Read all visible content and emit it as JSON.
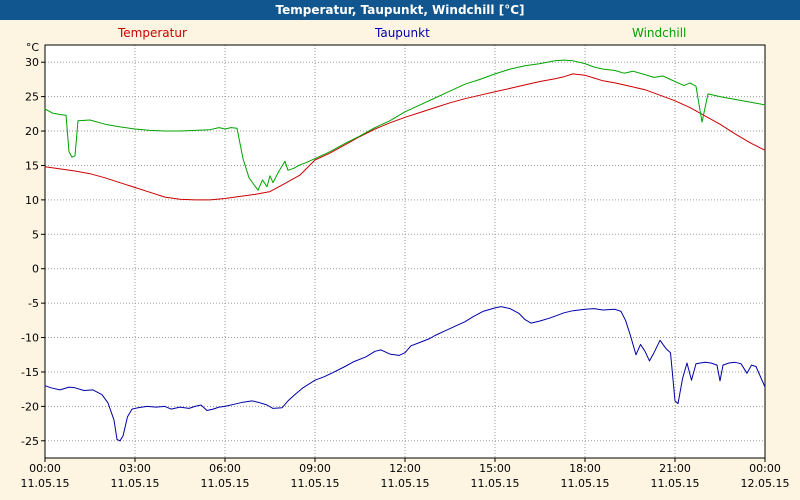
{
  "title_bar": {
    "title": "Temperatur, Taupunkt, Windchill [°C]"
  },
  "legend": [
    {
      "label": "Temperatur",
      "color": "#cc0000"
    },
    {
      "label": "Taupunkt",
      "color": "#0000aa"
    },
    {
      "label": "Windchill",
      "color": "#00a300"
    }
  ],
  "colors": {
    "background": "#fdf5e1",
    "titlebar_bg": "#11568e",
    "titlebar_text": "#ffffff",
    "plot_bg": "#ffffff",
    "frame": "#000000",
    "grid": "#9a9a9a"
  },
  "chart_data": {
    "type": "line",
    "title": "Temperatur, Taupunkt, Windchill [°C]",
    "ylabel": "°C",
    "xlabel": "",
    "ylim": [
      -27.5,
      32.5
    ],
    "xlim_hours": [
      0,
      24
    ],
    "grid": "dotted",
    "legend_position": "top",
    "yticks": [
      -25,
      -20,
      -15,
      -10,
      -5,
      0,
      5,
      10,
      15,
      20,
      25,
      30
    ],
    "xticks": [
      {
        "hour": 0,
        "time": "00:00",
        "date": "11.05.15"
      },
      {
        "hour": 3,
        "time": "03:00",
        "date": "11.05.15"
      },
      {
        "hour": 6,
        "time": "06:00",
        "date": "11.05.15"
      },
      {
        "hour": 9,
        "time": "09:00",
        "date": "11.05.15"
      },
      {
        "hour": 12,
        "time": "12:00",
        "date": "11.05.15"
      },
      {
        "hour": 15,
        "time": "15:00",
        "date": "11.05.15"
      },
      {
        "hour": 18,
        "time": "18:00",
        "date": "11.05.15"
      },
      {
        "hour": 21,
        "time": "21:00",
        "date": "11.05.15"
      },
      {
        "hour": 24,
        "time": "00:00",
        "date": "12.05.15"
      }
    ],
    "series": [
      {
        "name": "Temperatur",
        "color": "#cc0000",
        "points": [
          [
            0,
            14.8
          ],
          [
            0.5,
            14.5
          ],
          [
            1,
            14.2
          ],
          [
            1.5,
            13.8
          ],
          [
            2,
            13.2
          ],
          [
            2.5,
            12.5
          ],
          [
            3,
            11.8
          ],
          [
            3.5,
            11.1
          ],
          [
            4,
            10.4
          ],
          [
            4.5,
            10.1
          ],
          [
            5,
            10.0
          ],
          [
            5.5,
            10.0
          ],
          [
            6,
            10.2
          ],
          [
            6.5,
            10.5
          ],
          [
            7,
            10.8
          ],
          [
            7.5,
            11.2
          ],
          [
            8,
            12.4
          ],
          [
            8.5,
            13.6
          ],
          [
            9,
            15.8
          ],
          [
            9.5,
            16.8
          ],
          [
            10,
            18.0
          ],
          [
            10.5,
            19.2
          ],
          [
            11,
            20.3
          ],
          [
            11.5,
            21.2
          ],
          [
            12,
            22.0
          ],
          [
            12.5,
            22.7
          ],
          [
            13,
            23.4
          ],
          [
            13.5,
            24.1
          ],
          [
            14,
            24.7
          ],
          [
            14.5,
            25.2
          ],
          [
            15,
            25.7
          ],
          [
            15.5,
            26.2
          ],
          [
            16,
            26.7
          ],
          [
            16.5,
            27.2
          ],
          [
            17,
            27.6
          ],
          [
            17.3,
            27.9
          ],
          [
            17.6,
            28.3
          ],
          [
            18,
            28.1
          ],
          [
            18.3,
            27.7
          ],
          [
            18.6,
            27.3
          ],
          [
            19,
            27.0
          ],
          [
            19.5,
            26.5
          ],
          [
            20,
            26.0
          ],
          [
            20.5,
            25.2
          ],
          [
            21,
            24.4
          ],
          [
            21.5,
            23.4
          ],
          [
            22,
            22.2
          ],
          [
            22.5,
            21.0
          ],
          [
            23,
            19.6
          ],
          [
            23.5,
            18.3
          ],
          [
            24,
            17.2
          ]
        ]
      },
      {
        "name": "Taupunkt",
        "color": "#0000aa",
        "points": [
          [
            0,
            -17.0
          ],
          [
            0.2,
            -17.3
          ],
          [
            0.5,
            -17.6
          ],
          [
            0.8,
            -17.2
          ],
          [
            1,
            -17.3
          ],
          [
            1.3,
            -17.7
          ],
          [
            1.6,
            -17.6
          ],
          [
            1.9,
            -18.3
          ],
          [
            2.1,
            -19.5
          ],
          [
            2.3,
            -22.0
          ],
          [
            2.4,
            -24.8
          ],
          [
            2.5,
            -25.0
          ],
          [
            2.6,
            -24.3
          ],
          [
            2.75,
            -21.5
          ],
          [
            2.9,
            -20.4
          ],
          [
            3.1,
            -20.2
          ],
          [
            3.4,
            -20.0
          ],
          [
            3.7,
            -20.1
          ],
          [
            4,
            -20.0
          ],
          [
            4.2,
            -20.4
          ],
          [
            4.5,
            -20.1
          ],
          [
            4.8,
            -20.3
          ],
          [
            5,
            -20.0
          ],
          [
            5.2,
            -19.8
          ],
          [
            5.4,
            -20.6
          ],
          [
            5.6,
            -20.4
          ],
          [
            5.8,
            -20.1
          ],
          [
            6,
            -20.0
          ],
          [
            6.3,
            -19.7
          ],
          [
            6.6,
            -19.4
          ],
          [
            6.9,
            -19.2
          ],
          [
            7.1,
            -19.4
          ],
          [
            7.4,
            -19.8
          ],
          [
            7.6,
            -20.3
          ],
          [
            7.9,
            -20.2
          ],
          [
            8.1,
            -19.2
          ],
          [
            8.3,
            -18.4
          ],
          [
            8.6,
            -17.3
          ],
          [
            9,
            -16.2
          ],
          [
            9.3,
            -15.7
          ],
          [
            9.6,
            -15.1
          ],
          [
            10,
            -14.2
          ],
          [
            10.3,
            -13.5
          ],
          [
            10.7,
            -12.8
          ],
          [
            11,
            -12.0
          ],
          [
            11.2,
            -11.8
          ],
          [
            11.5,
            -12.4
          ],
          [
            11.8,
            -12.6
          ],
          [
            12,
            -12.2
          ],
          [
            12.2,
            -11.2
          ],
          [
            12.5,
            -10.7
          ],
          [
            12.8,
            -10.2
          ],
          [
            13,
            -9.7
          ],
          [
            13.3,
            -9.1
          ],
          [
            13.6,
            -8.5
          ],
          [
            14,
            -7.7
          ],
          [
            14.3,
            -6.9
          ],
          [
            14.6,
            -6.2
          ],
          [
            15,
            -5.7
          ],
          [
            15.2,
            -5.5
          ],
          [
            15.5,
            -5.8
          ],
          [
            15.8,
            -6.5
          ],
          [
            16,
            -7.4
          ],
          [
            16.2,
            -7.9
          ],
          [
            16.5,
            -7.6
          ],
          [
            16.8,
            -7.2
          ],
          [
            17,
            -6.9
          ],
          [
            17.3,
            -6.4
          ],
          [
            17.6,
            -6.1
          ],
          [
            18,
            -5.9
          ],
          [
            18.3,
            -5.8
          ],
          [
            18.6,
            -6.0
          ],
          [
            19,
            -5.9
          ],
          [
            19.2,
            -6.2
          ],
          [
            19.35,
            -7.5
          ],
          [
            19.5,
            -9.5
          ],
          [
            19.7,
            -12.5
          ],
          [
            19.85,
            -11.0
          ],
          [
            20,
            -12.0
          ],
          [
            20.15,
            -13.4
          ],
          [
            20.3,
            -12.2
          ],
          [
            20.5,
            -10.4
          ],
          [
            20.7,
            -11.6
          ],
          [
            20.85,
            -12.2
          ],
          [
            21,
            -19.2
          ],
          [
            21.1,
            -19.6
          ],
          [
            21.25,
            -16.0
          ],
          [
            21.4,
            -13.7
          ],
          [
            21.55,
            -16.2
          ],
          [
            21.7,
            -13.8
          ],
          [
            22,
            -13.6
          ],
          [
            22.2,
            -13.7
          ],
          [
            22.4,
            -14.0
          ],
          [
            22.5,
            -16.3
          ],
          [
            22.6,
            -14.0
          ],
          [
            22.8,
            -13.7
          ],
          [
            23,
            -13.6
          ],
          [
            23.2,
            -13.8
          ],
          [
            23.4,
            -15.2
          ],
          [
            23.55,
            -14.0
          ],
          [
            23.7,
            -14.2
          ],
          [
            24,
            -17.2
          ]
        ]
      },
      {
        "name": "Windchill",
        "color": "#00a300",
        "points": [
          [
            0,
            23.2
          ],
          [
            0.25,
            22.6
          ],
          [
            0.5,
            22.4
          ],
          [
            0.7,
            22.3
          ],
          [
            0.8,
            17.0
          ],
          [
            0.9,
            16.2
          ],
          [
            1.0,
            16.4
          ],
          [
            1.1,
            21.5
          ],
          [
            1.5,
            21.6
          ],
          [
            2,
            21.0
          ],
          [
            2.5,
            20.6
          ],
          [
            3,
            20.3
          ],
          [
            3.5,
            20.1
          ],
          [
            4,
            20.0
          ],
          [
            4.5,
            20.0
          ],
          [
            5,
            20.1
          ],
          [
            5.5,
            20.2
          ],
          [
            5.8,
            20.5
          ],
          [
            6,
            20.3
          ],
          [
            6.2,
            20.5
          ],
          [
            6.4,
            20.4
          ],
          [
            6.6,
            16.0
          ],
          [
            6.8,
            13.2
          ],
          [
            7,
            12.0
          ],
          [
            7.1,
            11.4
          ],
          [
            7.25,
            12.9
          ],
          [
            7.4,
            11.9
          ],
          [
            7.5,
            13.5
          ],
          [
            7.6,
            12.5
          ],
          [
            7.8,
            14.2
          ],
          [
            8,
            15.6
          ],
          [
            8.1,
            14.3
          ],
          [
            8.3,
            14.6
          ],
          [
            8.5,
            15.1
          ],
          [
            8.7,
            15.4
          ],
          [
            9,
            16.0
          ],
          [
            9.5,
            17.0
          ],
          [
            10,
            18.2
          ],
          [
            10.5,
            19.3
          ],
          [
            11,
            20.5
          ],
          [
            11.5,
            21.5
          ],
          [
            12,
            22.8
          ],
          [
            12.5,
            23.8
          ],
          [
            13,
            24.8
          ],
          [
            13.5,
            25.8
          ],
          [
            14,
            26.8
          ],
          [
            14.5,
            27.5
          ],
          [
            15,
            28.3
          ],
          [
            15.5,
            29.0
          ],
          [
            16,
            29.5
          ],
          [
            16.5,
            29.8
          ],
          [
            17,
            30.2
          ],
          [
            17.3,
            30.3
          ],
          [
            17.6,
            30.2
          ],
          [
            18,
            29.8
          ],
          [
            18.3,
            29.3
          ],
          [
            18.6,
            29.0
          ],
          [
            19,
            28.8
          ],
          [
            19.3,
            28.4
          ],
          [
            19.6,
            28.7
          ],
          [
            20,
            28.2
          ],
          [
            20.3,
            27.8
          ],
          [
            20.6,
            28.0
          ],
          [
            21,
            27.2
          ],
          [
            21.3,
            26.6
          ],
          [
            21.5,
            27.0
          ],
          [
            21.7,
            26.5
          ],
          [
            21.9,
            21.3
          ],
          [
            22.1,
            25.4
          ],
          [
            22.5,
            25.0
          ],
          [
            23,
            24.6
          ],
          [
            23.5,
            24.2
          ],
          [
            24,
            23.8
          ]
        ]
      }
    ]
  }
}
